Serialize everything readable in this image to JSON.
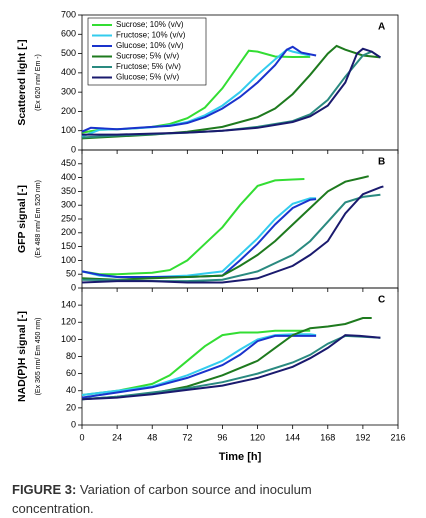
{
  "chart_data": [
    {
      "type": "line",
      "panel": "A",
      "ylabel": "Scattered light  [-]",
      "ylabel_sub": "(Ex 620 nm/ Em -)",
      "xlim": [
        0,
        216
      ],
      "ylim": [
        0,
        700
      ],
      "yticks": [
        0,
        100,
        200,
        300,
        400,
        500,
        600,
        700
      ],
      "legend": "upper left",
      "series": [
        {
          "name": "Sucrose; 10% (v/v)",
          "color": "#33dd33",
          "x": [
            0,
            12,
            24,
            36,
            48,
            60,
            72,
            84,
            96,
            108,
            114,
            120,
            132,
            144,
            156
          ],
          "values": [
            90,
            105,
            108,
            112,
            120,
            135,
            165,
            220,
            320,
            450,
            515,
            510,
            485,
            482,
            483
          ]
        },
        {
          "name": "Fructose; 10% (v/v)",
          "color": "#33ccee",
          "x": [
            0,
            12,
            24,
            36,
            48,
            60,
            72,
            84,
            96,
            108,
            120,
            132,
            140,
            144,
            156
          ],
          "values": [
            70,
            105,
            108,
            112,
            118,
            128,
            145,
            180,
            230,
            300,
            390,
            470,
            520,
            510,
            490
          ]
        },
        {
          "name": "Glucose; 10% (v/v)",
          "color": "#1a33cc",
          "x": [
            0,
            6,
            24,
            48,
            60,
            72,
            84,
            96,
            108,
            120,
            132,
            140,
            144,
            150,
            160
          ],
          "values": [
            95,
            115,
            108,
            120,
            125,
            140,
            170,
            215,
            275,
            350,
            440,
            520,
            535,
            505,
            490
          ]
        },
        {
          "name": "Sucrose; 5% (v/v)",
          "color": "#1e7a1e",
          "x": [
            0,
            24,
            48,
            72,
            96,
            120,
            132,
            144,
            156,
            168,
            174,
            180,
            192,
            204
          ],
          "values": [
            60,
            70,
            80,
            95,
            120,
            170,
            215,
            290,
            390,
            500,
            540,
            520,
            490,
            480
          ]
        },
        {
          "name": "Fructose; 5% (v/v)",
          "color": "#2a8a80",
          "x": [
            0,
            24,
            48,
            72,
            96,
            120,
            144,
            156,
            168,
            180,
            192,
            198,
            204
          ],
          "values": [
            65,
            75,
            82,
            90,
            100,
            120,
            150,
            185,
            260,
            380,
            490,
            510,
            480
          ]
        },
        {
          "name": "Glucose; 5% (v/v)",
          "color": "#1a1a6e",
          "x": [
            0,
            24,
            48,
            72,
            96,
            120,
            144,
            156,
            168,
            180,
            188,
            192,
            198,
            204
          ],
          "values": [
            80,
            80,
            85,
            90,
            100,
            115,
            145,
            175,
            230,
            350,
            500,
            525,
            510,
            480
          ]
        }
      ]
    },
    {
      "type": "line",
      "panel": "B",
      "ylabel": "GFP signal  [-]",
      "ylabel_sub": "(Ex 488 nm/ Em 520 nm)",
      "xlim": [
        0,
        216
      ],
      "ylim": [
        0,
        500
      ],
      "yticks": [
        0,
        50,
        100,
        150,
        200,
        250,
        300,
        350,
        400,
        450
      ],
      "series": [
        {
          "color": "#33dd33",
          "x": [
            0,
            12,
            24,
            48,
            60,
            72,
            84,
            96,
            108,
            120,
            132,
            144,
            152
          ],
          "values": [
            60,
            50,
            50,
            55,
            65,
            100,
            160,
            220,
            300,
            370,
            390,
            393,
            395
          ]
        },
        {
          "color": "#33ccee",
          "x": [
            0,
            12,
            24,
            48,
            72,
            96,
            108,
            120,
            132,
            144,
            156,
            160
          ],
          "values": [
            60,
            45,
            40,
            40,
            45,
            60,
            120,
            180,
            250,
            305,
            325,
            325
          ]
        },
        {
          "color": "#1a33cc",
          "x": [
            0,
            12,
            24,
            48,
            72,
            96,
            108,
            120,
            132,
            144,
            156,
            160
          ],
          "values": [
            60,
            48,
            40,
            40,
            40,
            45,
            100,
            160,
            230,
            290,
            320,
            322
          ]
        },
        {
          "color": "#1e7a1e",
          "x": [
            0,
            24,
            48,
            72,
            96,
            108,
            120,
            132,
            144,
            156,
            168,
            180,
            192,
            196
          ],
          "values": [
            35,
            30,
            35,
            40,
            45,
            80,
            120,
            170,
            230,
            290,
            350,
            385,
            400,
            405
          ]
        },
        {
          "color": "#2a8a80",
          "x": [
            0,
            24,
            48,
            72,
            96,
            120,
            144,
            156,
            168,
            180,
            192,
            204
          ],
          "values": [
            30,
            28,
            25,
            25,
            30,
            60,
            120,
            170,
            240,
            310,
            330,
            338
          ]
        },
        {
          "color": "#1a1a6e",
          "x": [
            0,
            24,
            48,
            72,
            96,
            120,
            144,
            156,
            168,
            180,
            192,
            204,
            206
          ],
          "values": [
            20,
            25,
            25,
            20,
            20,
            35,
            80,
            120,
            170,
            270,
            340,
            365,
            368
          ]
        }
      ]
    },
    {
      "type": "line",
      "panel": "C",
      "ylabel": "NAD(P)H signal  [-]",
      "ylabel_sub": "(Ex 365 nm/ Em 450 nm)",
      "xlabel": "Time   [h]",
      "xlim": [
        0,
        216
      ],
      "xticks": [
        0,
        24,
        48,
        72,
        96,
        120,
        144,
        168,
        192,
        216
      ],
      "ylim": [
        0,
        160
      ],
      "yticks": [
        0,
        20,
        40,
        60,
        80,
        100,
        120,
        140
      ],
      "series": [
        {
          "color": "#33dd33",
          "x": [
            0,
            24,
            48,
            60,
            72,
            84,
            96,
            108,
            120,
            132,
            144,
            156
          ],
          "values": [
            35,
            40,
            48,
            58,
            75,
            92,
            105,
            108,
            108,
            110,
            110,
            110
          ]
        },
        {
          "color": "#33ccee",
          "x": [
            0,
            24,
            48,
            72,
            96,
            108,
            120,
            132,
            144,
            156,
            160
          ],
          "values": [
            35,
            40,
            45,
            58,
            75,
            88,
            100,
            105,
            106,
            106,
            105
          ]
        },
        {
          "color": "#1a33cc",
          "x": [
            0,
            24,
            48,
            72,
            96,
            108,
            120,
            132,
            144,
            156,
            160
          ],
          "values": [
            32,
            38,
            44,
            55,
            70,
            82,
            98,
            104,
            104,
            104,
            104
          ]
        },
        {
          "color": "#1e7a1e",
          "x": [
            0,
            24,
            48,
            72,
            96,
            120,
            132,
            144,
            156,
            168,
            180,
            192,
            198
          ],
          "values": [
            30,
            33,
            37,
            45,
            58,
            75,
            90,
            105,
            113,
            115,
            118,
            125,
            125
          ]
        },
        {
          "color": "#2a8a80",
          "x": [
            0,
            24,
            48,
            72,
            96,
            120,
            144,
            156,
            168,
            180,
            192,
            204
          ],
          "values": [
            30,
            33,
            38,
            43,
            50,
            60,
            73,
            82,
            95,
            104,
            103,
            102
          ]
        },
        {
          "color": "#1a1a6e",
          "x": [
            0,
            24,
            48,
            72,
            96,
            120,
            144,
            156,
            168,
            180,
            190,
            204
          ],
          "values": [
            30,
            32,
            36,
            41,
            46,
            55,
            68,
            78,
            90,
            105,
            104,
            102
          ]
        }
      ]
    }
  ],
  "caption": {
    "label": "FIGURE 3:",
    "text": "Variation of carbon source and inoculum concentration."
  }
}
